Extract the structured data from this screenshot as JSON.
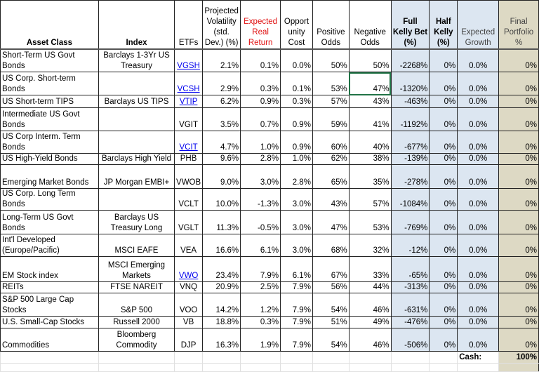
{
  "headers": {
    "asset_class": "Asset Class",
    "index": "Index",
    "etfs": "ETFs",
    "volatility": "Projected Volatility (std. Dev.) (%)",
    "expected_return": "Expected Real Return",
    "opportunity_cost": "Opport unity Cost",
    "positive_odds": "Positive Odds",
    "negative_odds": "Negative Odds",
    "full_kelly": "Full Kelly Bet (%)",
    "half_kelly": "Half Kelly (%)",
    "expected_growth": "Expected Growth",
    "final_portfolio": "Final Portfolio %"
  },
  "rows": [
    {
      "asset": "Short-Term US Govt Bonds",
      "index": "Barclays 1-3Yr US Treasury",
      "etf": "VGSH",
      "etf_link": true,
      "vol": "2.1%",
      "ret": "0.1%",
      "opp": "0.0%",
      "pos": "50%",
      "neg": "50%",
      "full": "-2268%",
      "half": "0%",
      "growth": "0.0%",
      "final": "0%"
    },
    {
      "asset": "US Corp. Short-term Bonds",
      "index": "",
      "etf": "VCSH",
      "etf_link": true,
      "vol": "2.9%",
      "ret": "0.3%",
      "opp": "0.1%",
      "pos": "53%",
      "neg": "47%",
      "full": "-1320%",
      "half": "0%",
      "growth": "0.0%",
      "final": "0%"
    },
    {
      "asset": "US Short-term TIPS",
      "index": "Barclays US TIPS",
      "etf": "VTIP",
      "etf_link": true,
      "vol": "6.2%",
      "ret": "0.9%",
      "opp": "0.3%",
      "pos": "57%",
      "neg": "43%",
      "full": "-463%",
      "half": "0%",
      "growth": "0.0%",
      "final": "0%"
    },
    {
      "asset": "Intermediate US Govt Bonds",
      "index": "",
      "etf": "VGIT",
      "etf_link": false,
      "vol": "3.5%",
      "ret": "0.7%",
      "opp": "0.9%",
      "pos": "59%",
      "neg": "41%",
      "full": "-1192%",
      "half": "0%",
      "growth": "0.0%",
      "final": "0%"
    },
    {
      "asset": "US Corp Interm. Term Bonds",
      "index": "",
      "etf": "VCIT",
      "etf_link": true,
      "vol": "4.7%",
      "ret": "1.0%",
      "opp": "0.9%",
      "pos": "60%",
      "neg": "40%",
      "full": "-677%",
      "half": "0%",
      "growth": "0.0%",
      "final": "0%"
    },
    {
      "asset": "US High-Yield Bonds",
      "index": "Barclays High Yield",
      "etf": "PHB",
      "etf_link": false,
      "vol": "9.6%",
      "ret": "2.8%",
      "opp": "1.0%",
      "pos": "62%",
      "neg": "38%",
      "full": "-139%",
      "half": "0%",
      "growth": "0.0%",
      "final": "0%"
    },
    {
      "asset": "Emerging Market Bonds",
      "index": "JP Morgan EMBI+",
      "etf": "VWOB",
      "etf_link": false,
      "vol": "9.0%",
      "ret": "3.0%",
      "opp": "2.8%",
      "pos": "65%",
      "neg": "35%",
      "full": "-278%",
      "half": "0%",
      "growth": "0.0%",
      "final": "0%"
    },
    {
      "asset": "US Corp. Long Term Bonds",
      "index": "",
      "etf": "VCLT",
      "etf_link": false,
      "vol": "10.0%",
      "ret": "-1.3%",
      "opp": "3.0%",
      "pos": "43%",
      "neg": "57%",
      "full": "-1084%",
      "half": "0%",
      "growth": "0.0%",
      "final": "0%"
    },
    {
      "asset": "Long-Term US Govt Bonds",
      "index": "Barclays US Treasury Long",
      "etf": "VGLT",
      "etf_link": false,
      "vol": "11.3%",
      "ret": "-0.5%",
      "opp": "3.0%",
      "pos": "47%",
      "neg": "53%",
      "full": "-769%",
      "half": "0%",
      "growth": "0.0%",
      "final": "0%"
    },
    {
      "asset": "Int'l Developed (Europe/Pacific)",
      "index": "MSCI EAFE",
      "etf": "VEA",
      "etf_link": false,
      "vol": "16.6%",
      "ret": "6.1%",
      "opp": "3.0%",
      "pos": "68%",
      "neg": "32%",
      "full": "-12%",
      "half": "0%",
      "growth": "0.0%",
      "final": "0%"
    },
    {
      "asset": "EM Stock index",
      "index": "MSCI Emerging Markets",
      "etf": "VWO",
      "etf_link": true,
      "vol": "23.4%",
      "ret": "7.9%",
      "opp": "6.1%",
      "pos": "67%",
      "neg": "33%",
      "full": "-65%",
      "half": "0%",
      "growth": "0.0%",
      "final": "0%"
    },
    {
      "asset": "REITs",
      "index": "FTSE NAREIT",
      "etf": "VNQ",
      "etf_link": false,
      "vol": "20.9%",
      "ret": "2.5%",
      "opp": "7.9%",
      "pos": "56%",
      "neg": "44%",
      "full": "-313%",
      "half": "0%",
      "growth": "0.0%",
      "final": "0%"
    },
    {
      "asset": "S&P 500 Large Cap Stocks",
      "index": "S&P 500",
      "etf": "VOO",
      "etf_link": false,
      "vol": "14.2%",
      "ret": "1.2%",
      "opp": "7.9%",
      "pos": "54%",
      "neg": "46%",
      "full": "-631%",
      "half": "0%",
      "growth": "0.0%",
      "final": "0%"
    },
    {
      "asset": "U.S. Small-Cap Stocks",
      "index": "Russell 2000",
      "etf": "VB",
      "etf_link": false,
      "vol": "18.8%",
      "ret": "0.3%",
      "opp": "7.9%",
      "pos": "51%",
      "neg": "49%",
      "full": "-476%",
      "half": "0%",
      "growth": "0.0%",
      "final": "0%"
    },
    {
      "asset": "Commodities",
      "index": "Bloomberg Commodity",
      "etf": "DJP",
      "etf_link": false,
      "vol": "16.3%",
      "ret": "1.9%",
      "opp": "7.9%",
      "pos": "54%",
      "neg": "46%",
      "full": "-506%",
      "half": "0%",
      "growth": "0.0%",
      "final": "0%"
    }
  ],
  "cash": {
    "label": "Cash:",
    "value": "100%"
  },
  "colors": {
    "kelly_fill": "#dce6f1",
    "final_fill": "#ddd9c4",
    "expected_return_header": "#e01010",
    "link": "#0000ee",
    "selection": "#217346"
  }
}
